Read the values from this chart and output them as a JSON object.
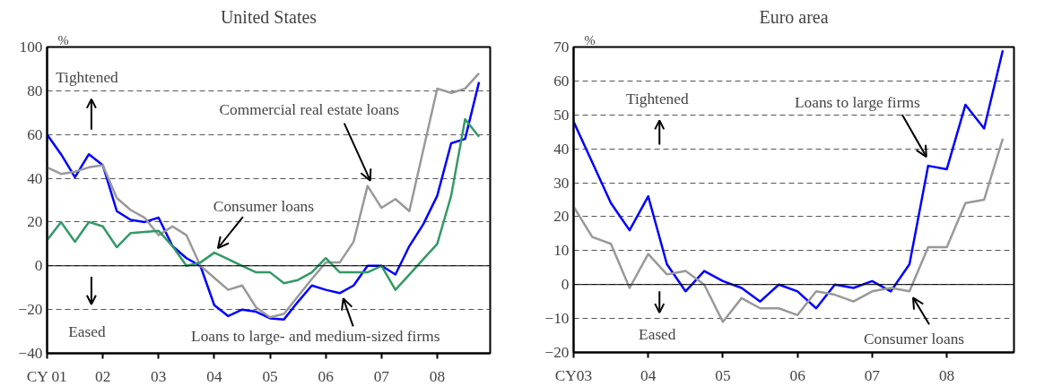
{
  "chart_data": [
    {
      "type": "line",
      "title": "United States",
      "ylabel": "%",
      "xlim": [
        2001,
        2008.95
      ],
      "ylim": [
        -40,
        100
      ],
      "xticks": [
        {
          "value": 2001,
          "label": "CY 01"
        },
        {
          "value": 2002,
          "label": "02"
        },
        {
          "value": 2003,
          "label": "03"
        },
        {
          "value": 2004,
          "label": "04"
        },
        {
          "value": 2005,
          "label": "05"
        },
        {
          "value": 2006,
          "label": "06"
        },
        {
          "value": 2007,
          "label": "07"
        },
        {
          "value": 2008,
          "label": "08"
        }
      ],
      "yticks": [
        -40,
        -20,
        0,
        20,
        40,
        60,
        80,
        100
      ],
      "grid": "y",
      "x": [
        2001,
        2001.25,
        2001.5,
        2001.75,
        2002,
        2002.25,
        2002.5,
        2002.75,
        2003,
        2003.25,
        2003.5,
        2003.75,
        2004,
        2004.25,
        2004.5,
        2004.75,
        2005,
        2005.25,
        2005.5,
        2005.75,
        2006,
        2006.25,
        2006.5,
        2006.75,
        2007,
        2007.25,
        2007.5,
        2007.75,
        2008,
        2008.25,
        2008.5,
        2008.75
      ],
      "series": [
        {
          "name": "Loans to large- and medium-sized firms",
          "color": "#0000ff",
          "values": [
            60,
            51,
            40.5,
            51,
            46,
            25,
            21,
            20,
            22,
            9,
            3.5,
            0,
            -18,
            -23,
            -20,
            -21,
            -24,
            -24.5,
            -16.5,
            -9,
            -11,
            -12.5,
            -9,
            0,
            0,
            -4,
            9,
            19,
            32,
            56,
            58,
            84
          ]
        },
        {
          "name": "Commercial real estate loans",
          "color": "#999999",
          "values": [
            45,
            42,
            43,
            45,
            46,
            31,
            25.5,
            22,
            14,
            18,
            14,
            0,
            -5.5,
            -11,
            -9,
            -19,
            -23.5,
            -22,
            -14,
            -6,
            1.5,
            1.5,
            11,
            36.5,
            26.5,
            30.5,
            25,
            53,
            81,
            79,
            81,
            88
          ]
        },
        {
          "name": "Consumer loans",
          "color": "#339966",
          "values": [
            11.7,
            20,
            11,
            20,
            18,
            8.5,
            15,
            15.5,
            16,
            9,
            0,
            1.5,
            6,
            3,
            0,
            -3,
            -3,
            -8,
            -6.5,
            -3,
            3.5,
            -3,
            -3,
            -3,
            0,
            -11,
            -4,
            3,
            10,
            32,
            67,
            59
          ]
        }
      ],
      "ref_lines": [
        {
          "axis": "y",
          "value": 0,
          "color": "#000000"
        }
      ],
      "annotations": [
        "Tightened",
        "Eased"
      ]
    },
    {
      "type": "line",
      "title": "Euro area",
      "ylabel": "%",
      "xlim": [
        2003,
        2008.9
      ],
      "ylim": [
        -20,
        70
      ],
      "xticks": [
        {
          "value": 2003,
          "label": "CY03"
        },
        {
          "value": 2004,
          "label": "04"
        },
        {
          "value": 2005,
          "label": "05"
        },
        {
          "value": 2006,
          "label": "06"
        },
        {
          "value": 2007,
          "label": "07"
        },
        {
          "value": 2008,
          "label": "08"
        }
      ],
      "yticks": [
        -20,
        -10,
        0,
        10,
        20,
        30,
        40,
        50,
        60,
        70
      ],
      "grid": "y",
      "x": [
        2003,
        2003.25,
        2003.5,
        2003.75,
        2004,
        2004.25,
        2004.5,
        2004.75,
        2005,
        2005.25,
        2005.5,
        2005.75,
        2006,
        2006.25,
        2006.5,
        2006.75,
        2007,
        2007.25,
        2007.5,
        2007.75,
        2008,
        2008.25,
        2008.5,
        2008.75
      ],
      "series": [
        {
          "name": "Loans to large firms",
          "color": "#0000ff",
          "values": [
            48,
            36,
            24,
            16,
            26,
            6,
            -2,
            4,
            1,
            -1,
            -5,
            0,
            -2,
            -7,
            0,
            -1,
            1,
            -2,
            6,
            35,
            34,
            53,
            46,
            69
          ]
        },
        {
          "name": "Consumer loans",
          "color": "#999999",
          "values": [
            23,
            14,
            12,
            -1,
            9,
            3,
            4,
            0,
            -11,
            -4,
            -7,
            -7,
            -9,
            -2,
            -3,
            -5,
            -2,
            -1,
            -2,
            11,
            11,
            24,
            25,
            43
          ]
        }
      ],
      "ref_lines": [
        {
          "axis": "y",
          "value": 0,
          "color": "#000000"
        }
      ],
      "annotations": [
        "Tightened",
        "Eased"
      ]
    }
  ]
}
